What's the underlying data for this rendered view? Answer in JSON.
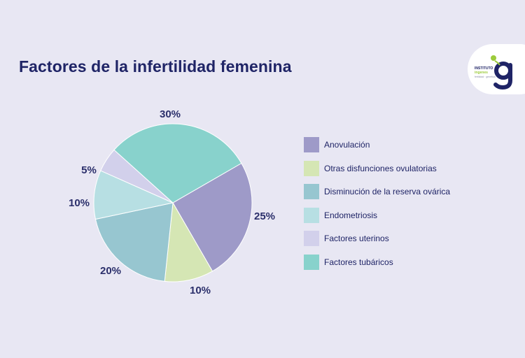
{
  "title": "Factores de la infertilidad femenina",
  "logo": {
    "line1": "INSTITUTO",
    "line2": "ingenes",
    "line3": "fertilidad · genética",
    "mark": "g",
    "colors": {
      "mark": "#1f2466",
      "accent": "#9ccb3b"
    }
  },
  "chart_data": {
    "type": "pie",
    "title": "Factores de la infertilidad femenina",
    "categories": [
      "Anovulación",
      "Otras disfunciones ovulatorias",
      "Disminución de la reserva ovárica",
      "Endometriosis",
      "Factores uterinos",
      "Factores tubáricos"
    ],
    "values": [
      25,
      10,
      20,
      10,
      5,
      30
    ],
    "value_labels": [
      "25%",
      "10%",
      "20%",
      "10%",
      "5%",
      "30%"
    ],
    "colors": [
      "#9e9ac8",
      "#d5e6b4",
      "#97c6d0",
      "#b7dfe3",
      "#d2d0eb",
      "#88d2cc"
    ],
    "legend_position": "right"
  }
}
